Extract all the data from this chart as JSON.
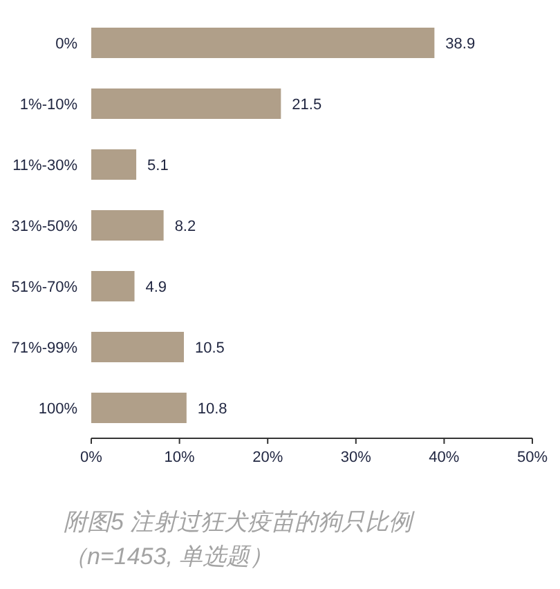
{
  "chart_data": {
    "type": "bar",
    "orientation": "horizontal",
    "categories": [
      "0%",
      "1%-10%",
      "11%-30%",
      "31%-50%",
      "51%-70%",
      "71%-99%",
      "100%"
    ],
    "values": [
      38.9,
      21.5,
      5.1,
      8.2,
      4.9,
      10.5,
      10.8
    ],
    "color": "#b09f89",
    "xlim": [
      0,
      50
    ],
    "xticks": [
      {
        "value": 0,
        "label": "0%"
      },
      {
        "value": 10,
        "label": "10%"
      },
      {
        "value": 20,
        "label": "20%"
      },
      {
        "value": 30,
        "label": "30%"
      },
      {
        "value": 40,
        "label": "40%"
      },
      {
        "value": 50,
        "label": "50%"
      }
    ],
    "data_labels": true,
    "annotations": [
      "附图5  注射过狂犬疫苗的狗只比例",
      "（n=1453, 单选题）"
    ]
  }
}
